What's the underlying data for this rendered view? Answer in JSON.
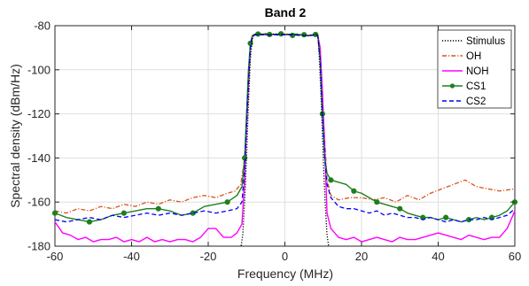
{
  "chart_data": {
    "type": "line",
    "title": "Band 2",
    "xlabel": "Frequency (MHz)",
    "ylabel": "Spectral density (dBm/Hz)",
    "xlim": [
      -60,
      60
    ],
    "ylim": [
      -180,
      -80
    ],
    "xticks": [
      -60,
      -40,
      -20,
      0,
      20,
      40,
      60
    ],
    "yticks": [
      -180,
      -160,
      -140,
      -120,
      -100,
      -80
    ],
    "grid": true,
    "legend_position": "top-right",
    "series": [
      {
        "name": "Stimulus",
        "color": "#000000",
        "style": "dotted",
        "x": [
          -11.5,
          -11.0,
          -10.5,
          -10.0,
          -9.5,
          -9.0,
          -8.5,
          -8.0,
          -6,
          -4,
          -2,
          0,
          2,
          4,
          6,
          8,
          8.6,
          9.0,
          9.5,
          10.0,
          10.5,
          11.0,
          11.5
        ],
        "y": [
          -181,
          -175,
          -160,
          -140,
          -115,
          -95,
          -86,
          -84,
          -83.8,
          -84.2,
          -83.7,
          -84,
          -83.9,
          -84.1,
          -84.6,
          -84,
          -84,
          -95,
          -115,
          -140,
          -160,
          -175,
          -181
        ]
      },
      {
        "name": "OH",
        "color": "#D95319",
        "style": "dashdot",
        "x": [
          -60,
          -57,
          -54,
          -51,
          -48,
          -45,
          -42,
          -39,
          -36,
          -33,
          -30,
          -27,
          -24,
          -21,
          -18,
          -15,
          -13,
          -11.5,
          -10.5,
          -9.5,
          -9,
          -8.5,
          -8,
          -6,
          -4,
          -2,
          0,
          2,
          4,
          6,
          8,
          8.6,
          9.2,
          10,
          11,
          12,
          14,
          17,
          20,
          23,
          26,
          29,
          32,
          35,
          38,
          41,
          44,
          47,
          50,
          53,
          56,
          60
        ],
        "y": [
          -164,
          -165,
          -163,
          -164,
          -162,
          -163,
          -161,
          -162,
          -160,
          -161,
          -159,
          -160,
          -158,
          -157,
          -158,
          -156,
          -155,
          -152,
          -140,
          -110,
          -90,
          -85,
          -84.2,
          -83.8,
          -84.2,
          -84,
          -83.8,
          -84,
          -84.2,
          -84.5,
          -84.2,
          -84.5,
          -90,
          -120,
          -150,
          -157,
          -159,
          -158,
          -158,
          -159,
          -158,
          -160,
          -157,
          -159,
          -156,
          -154,
          -152,
          -150,
          -153,
          -154,
          -155,
          -154
        ]
      },
      {
        "name": "NOH",
        "color": "#FF00FF",
        "style": "solid",
        "x": [
          -60,
          -58,
          -56,
          -54,
          -52,
          -50,
          -48,
          -46,
          -44,
          -42,
          -40,
          -38,
          -36,
          -34,
          -32,
          -30,
          -28,
          -26,
          -24,
          -22,
          -20,
          -18,
          -16,
          -14,
          -12.5,
          -11.2,
          -10.5,
          -10,
          -9.5,
          -9,
          -8.5,
          -8,
          -6,
          -4,
          -2,
          0,
          2,
          4,
          6,
          8,
          8.6,
          9.2,
          9.8,
          10.4,
          11,
          12,
          14,
          16,
          18,
          20,
          22,
          24,
          26,
          28,
          30,
          32,
          34,
          36,
          38,
          40,
          42,
          44,
          46,
          48,
          50,
          52,
          54,
          56,
          58,
          60
        ],
        "y": [
          -169,
          -174,
          -175,
          -177,
          -176,
          -178,
          -177,
          -177,
          -176,
          -178,
          -177,
          -178,
          -176,
          -178,
          -177,
          -178,
          -177,
          -177,
          -178,
          -176,
          -172,
          -172,
          -176,
          -176,
          -174,
          -170,
          -150,
          -125,
          -105,
          -90,
          -85,
          -84.3,
          -84,
          -84.2,
          -83.9,
          -84.1,
          -84,
          -84.2,
          -84.4,
          -84,
          -84.5,
          -90,
          -110,
          -135,
          -165,
          -172,
          -176,
          -177,
          -176,
          -178,
          -177,
          -176,
          -177,
          -178,
          -176,
          -177,
          -177,
          -176,
          -175,
          -174,
          -175,
          -176,
          -177,
          -175,
          -176,
          -177,
          -176,
          -176,
          -172,
          -164
        ]
      },
      {
        "name": "CS1",
        "color": "#1E7F1E",
        "style": "solid",
        "marker": "circle",
        "x": [
          -60,
          -57,
          -54,
          -51,
          -48,
          -45,
          -42,
          -39,
          -36,
          -33,
          -30,
          -27,
          -24,
          -21,
          -18,
          -15,
          -12.5,
          -11.2,
          -10.5,
          -10,
          -9.5,
          -9,
          -8.5,
          -8,
          -7,
          -6,
          -5,
          -4,
          -3,
          -2,
          -1,
          0,
          1,
          2,
          3,
          4,
          5,
          6,
          7,
          8,
          8.6,
          9.2,
          9.8,
          10.4,
          11,
          12,
          14,
          16,
          18,
          20,
          22,
          24,
          26,
          28,
          30,
          32,
          34,
          36,
          38,
          40,
          42,
          44,
          46,
          48,
          50,
          52,
          54,
          56,
          58,
          60
        ],
        "y": [
          -165,
          -167,
          -168,
          -169,
          -168,
          -166,
          -165,
          -164,
          -163,
          -163,
          -164,
          -166,
          -165,
          -162,
          -161,
          -160,
          -157,
          -153,
          -140,
          -120,
          -100,
          -88,
          -84.5,
          -84,
          -83.8,
          -84.2,
          -83.6,
          -84,
          -83.8,
          -84.3,
          -83.7,
          -84,
          -83.9,
          -84.4,
          -83.8,
          -84.2,
          -84.1,
          -84.6,
          -84.3,
          -84,
          -84.5,
          -95,
          -120,
          -140,
          -147,
          -150,
          -151,
          -152,
          -155,
          -156,
          -158,
          -160,
          -161,
          -162,
          -163,
          -165,
          -166,
          -167,
          -167,
          -168,
          -167,
          -168,
          -169,
          -168,
          -167,
          -168,
          -167,
          -166,
          -164,
          -160
        ]
      },
      {
        "name": "CS2",
        "color": "#0000FF",
        "style": "dashed",
        "x": [
          -60,
          -57,
          -54,
          -51,
          -48,
          -45,
          -42,
          -39,
          -36,
          -33,
          -30,
          -27,
          -24,
          -21,
          -18,
          -15,
          -12.5,
          -11.2,
          -10.5,
          -10,
          -9.5,
          -9,
          -8.5,
          -8,
          -6,
          -4,
          -2,
          0,
          2,
          4,
          6,
          8,
          8.6,
          9.2,
          9.8,
          10.4,
          11,
          12,
          14,
          16,
          18,
          20,
          22,
          24,
          26,
          28,
          30,
          32,
          34,
          36,
          38,
          40,
          42,
          44,
          46,
          48,
          50,
          52,
          54,
          56,
          58,
          60
        ],
        "y": [
          -168,
          -169,
          -168,
          -167,
          -168,
          -166,
          -167,
          -166,
          -165,
          -166,
          -165,
          -166,
          -165,
          -164,
          -165,
          -164,
          -163,
          -160,
          -145,
          -125,
          -105,
          -90,
          -85,
          -84.2,
          -84,
          -84.3,
          -84,
          -84.1,
          -84.2,
          -84.4,
          -84.6,
          -84.2,
          -84.6,
          -95,
          -120,
          -140,
          -152,
          -158,
          -162,
          -163,
          -163,
          -164,
          -165,
          -164,
          -166,
          -165,
          -166,
          -167,
          -167,
          -168,
          -167,
          -168,
          -169,
          -168,
          -169,
          -168,
          -168,
          -167,
          -168,
          -167,
          -166,
          -163
        ]
      }
    ]
  }
}
